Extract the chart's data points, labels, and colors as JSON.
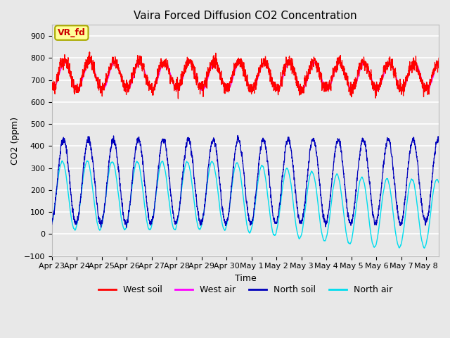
{
  "title": "Vaira Forced Diffusion CO2 Concentration",
  "xlabel": "Time",
  "ylabel": "CO2 (ppm)",
  "ylim": [
    -100,
    950
  ],
  "yticks": [
    -100,
    0,
    100,
    200,
    300,
    400,
    500,
    600,
    700,
    800,
    900
  ],
  "x_labels": [
    "Apr 23",
    "Apr 24",
    "Apr 25",
    "Apr 26",
    "Apr 27",
    "Apr 28",
    "Apr 29",
    "Apr 30",
    "May 1",
    "May 2",
    "May 3",
    "May 4",
    "May 5",
    "May 6",
    "May 7",
    "May 8"
  ],
  "legend_labels": [
    "West soil",
    "West air",
    "North soil",
    "North air"
  ],
  "line_colors": [
    "#ff0000",
    "#ff00ff",
    "#0000bb",
    "#00ddee"
  ],
  "annotation_text": "VR_fd",
  "annotation_bg": "#ffff99",
  "annotation_border": "#aaaa00",
  "plot_bg": "#e8e8e8",
  "title_fontsize": 11,
  "axis_fontsize": 9,
  "tick_fontsize": 8,
  "legend_fontsize": 9,
  "days": 15.5,
  "n_points": 4000
}
